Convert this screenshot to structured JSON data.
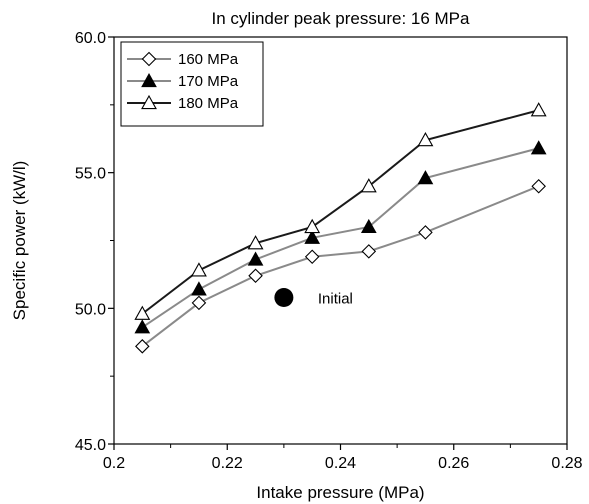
{
  "chart_data": {
    "type": "line",
    "title": "In cylinder peak pressure: 16 MPa",
    "xlabel": "Intake pressure (MPa)",
    "ylabel": "Specific power (kW/l)",
    "xlim": [
      0.2,
      0.28
    ],
    "ylim": [
      45.0,
      60.0
    ],
    "xticks": [
      "0.2",
      "0.22",
      "0.24",
      "0.26",
      "0.28"
    ],
    "yticks": [
      "45.0",
      "50.0",
      "55.0",
      "60.0"
    ],
    "grid": false,
    "legend_position": "top-left",
    "series": [
      {
        "name": "160 MPa",
        "marker": "open-diamond",
        "line_color": "#8a8a8a",
        "x": [
          0.205,
          0.215,
          0.225,
          0.235,
          0.245,
          0.255,
          0.275
        ],
        "y": [
          48.6,
          50.2,
          51.2,
          51.9,
          52.1,
          52.8,
          54.5
        ]
      },
      {
        "name": "170 MPa",
        "marker": "filled-triangle",
        "line_color": "#8a8a8a",
        "x": [
          0.205,
          0.215,
          0.225,
          0.235,
          0.245,
          0.255,
          0.275
        ],
        "y": [
          49.3,
          50.7,
          51.8,
          52.6,
          53.0,
          54.8,
          55.9
        ]
      },
      {
        "name": "180 MPa",
        "marker": "open-triangle",
        "line_color": "#1a1a1a",
        "x": [
          0.205,
          0.215,
          0.225,
          0.235,
          0.245,
          0.255,
          0.275
        ],
        "y": [
          49.8,
          51.4,
          52.4,
          53.0,
          54.5,
          56.2,
          57.3
        ]
      }
    ],
    "annotations": [
      {
        "label": "Initial",
        "x": 0.23,
        "y": 50.4,
        "marker": "filled-circle"
      }
    ]
  }
}
